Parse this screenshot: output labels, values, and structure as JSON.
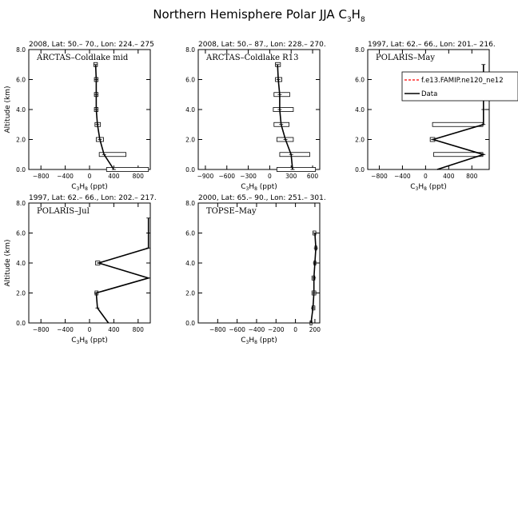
{
  "title": {
    "main": "Northern Hemisphere Polar JJA C",
    "sub1": "3",
    "mid": "H",
    "sub2": "8"
  },
  "common": {
    "ylabel": "Altitude (km)",
    "xlabel_main": "C",
    "xlabel_sub1": "3",
    "xlabel_mid": "H",
    "xlabel_sub2": "8",
    "xlabel_tail": " (ppt)"
  },
  "legend": {
    "model": "f.e13.FAMIP.ne120_ne12",
    "obs": "Data"
  },
  "colors": {
    "model": "#ff0000",
    "obs": "#000000"
  },
  "chart_data": [
    {
      "type": "line",
      "header": "2008, Lat:  50.– 70., Lon: 224.– 275",
      "campaign": "ARCTAS–Coldlake mid",
      "xlim": [
        -1000,
        1000
      ],
      "ylim": [
        0,
        8
      ],
      "xticks": [
        -800,
        -400,
        0,
        400,
        800
      ],
      "xticklabels": [
        "−800",
        "−400",
        "0",
        "400",
        "800"
      ],
      "yticks": [
        0,
        2,
        4,
        6,
        8
      ],
      "yticklabels": [
        "0.0",
        "2.0",
        "4.0",
        "6.0",
        "8.0"
      ],
      "series": [
        {
          "altitude": [
            0,
            1,
            2,
            3,
            4,
            5,
            6,
            7
          ],
          "c3h8": [
            400,
            240,
            170,
            130,
            110,
            110,
            110,
            100
          ]
        }
      ],
      "boxes": [
        {
          "alt": 0,
          "lo": 280,
          "hi": 970
        },
        {
          "alt": 1,
          "lo": 160,
          "hi": 600
        },
        {
          "alt": 2,
          "lo": 110,
          "hi": 230
        },
        {
          "alt": 3,
          "lo": 90,
          "hi": 180
        },
        {
          "alt": 4,
          "lo": 80,
          "hi": 140
        },
        {
          "alt": 5,
          "lo": 80,
          "hi": 140
        },
        {
          "alt": 6,
          "lo": 80,
          "hi": 140
        },
        {
          "alt": 7,
          "lo": 70,
          "hi": 130
        }
      ],
      "legend": false
    },
    {
      "type": "line",
      "header": "2008, Lat:  50.– 87., Lon: 228.– 270.",
      "campaign": "ARCTAS–Coldlake R13",
      "xlim": [
        -1000,
        700
      ],
      "ylim": [
        0,
        8
      ],
      "xticks": [
        -900,
        -600,
        -300,
        0,
        300,
        600
      ],
      "xticklabels": [
        "−900",
        "−600",
        "−300",
        "0",
        "300",
        "600"
      ],
      "yticks": [
        0,
        2,
        4,
        6,
        8
      ],
      "yticklabels": [
        "0.0",
        "2.0",
        "4.0",
        "6.0",
        "8.0"
      ],
      "series": [
        {
          "altitude": [
            0,
            1,
            2,
            3,
            4,
            5,
            6,
            7
          ],
          "c3h8": [
            320,
            300,
            220,
            160,
            140,
            140,
            120,
            110
          ]
        }
      ],
      "boxes": [
        {
          "alt": 0,
          "lo": 100,
          "hi": 640
        },
        {
          "alt": 1,
          "lo": 140,
          "hi": 560
        },
        {
          "alt": 2,
          "lo": 100,
          "hi": 330
        },
        {
          "alt": 3,
          "lo": 60,
          "hi": 270
        },
        {
          "alt": 4,
          "lo": 50,
          "hi": 330
        },
        {
          "alt": 5,
          "lo": 60,
          "hi": 280
        },
        {
          "alt": 6,
          "lo": 80,
          "hi": 170
        },
        {
          "alt": 7,
          "lo": 80,
          "hi": 150
        }
      ],
      "legend": false
    },
    {
      "type": "line",
      "header": "1997, Lat: 62.– 66., Lon: 201.– 216.",
      "campaign": "POLARIS–May",
      "xlim": [
        -1000,
        1100
      ],
      "ylim": [
        0,
        8
      ],
      "xticks": [
        -800,
        -400,
        0,
        400,
        800
      ],
      "xticklabels": [
        "−800",
        "−400",
        "0",
        "400",
        "800"
      ],
      "yticks": [
        0,
        2,
        4,
        6,
        8
      ],
      "yticklabels": [
        "0.0",
        "2.0",
        "4.0",
        "6.0",
        "8.0"
      ],
      "series": [
        {
          "altitude": [
            0,
            1,
            2,
            3,
            4,
            5,
            6,
            7
          ],
          "c3h8": [
            200,
            1000,
            130,
            1000,
            1000,
            1000,
            1000,
            1000
          ]
        }
      ],
      "boxes": [
        {
          "alt": 1,
          "lo": 140,
          "hi": 990
        },
        {
          "alt": 2,
          "lo": 80,
          "hi": 160
        },
        {
          "alt": 3,
          "lo": 120,
          "hi": 990
        }
      ],
      "legend": true
    },
    {
      "type": "line",
      "header": "1997, Lat: 62.– 66., Lon: 202.– 217.",
      "campaign": "POLARIS–Jul",
      "xlim": [
        -1000,
        1000
      ],
      "ylim": [
        0,
        8
      ],
      "xticks": [
        -800,
        -400,
        0,
        400,
        800
      ],
      "xticklabels": [
        "−800",
        "−400",
        "0",
        "400",
        "800"
      ],
      "yticks": [
        0,
        2,
        4,
        6,
        8
      ],
      "yticklabels": [
        "0.0",
        "2.0",
        "4.0",
        "6.0",
        "8.0"
      ],
      "series": [
        {
          "altitude": [
            0,
            1,
            2,
            3,
            4,
            5,
            6,
            7
          ],
          "c3h8": [
            310,
            130,
            110,
            970,
            150,
            970,
            970,
            970
          ]
        }
      ],
      "boxes": [
        {
          "alt": 2,
          "lo": 90,
          "hi": 140
        },
        {
          "alt": 4,
          "lo": 100,
          "hi": 170
        }
      ],
      "legend": false
    },
    {
      "type": "line",
      "header": "2000, Lat: 65.– 90., Lon: 251.– 301.",
      "campaign": "TOPSE–May",
      "xlim": [
        -1000,
        250
      ],
      "ylim": [
        0,
        8
      ],
      "xticks": [
        -800,
        -600,
        -400,
        -200,
        0,
        200
      ],
      "xticklabels": [
        "−800",
        "−600",
        "−400",
        "−200",
        "0",
        "200"
      ],
      "yticks": [
        0,
        2,
        4,
        6,
        8
      ],
      "yticklabels": [
        "0.0",
        "2.0",
        "4.0",
        "6.0",
        "8.0"
      ],
      "series": [
        {
          "altitude": [
            0,
            1,
            2,
            3,
            4,
            5,
            6
          ],
          "c3h8": [
            160,
            180,
            190,
            190,
            200,
            210,
            200
          ]
        }
      ],
      "boxes": [
        {
          "alt": 0,
          "lo": 150,
          "hi": 170
        },
        {
          "alt": 1,
          "lo": 170,
          "hi": 200
        },
        {
          "alt": 2,
          "lo": 170,
          "hi": 210
        },
        {
          "alt": 3,
          "lo": 170,
          "hi": 200
        },
        {
          "alt": 4,
          "lo": 190,
          "hi": 210
        },
        {
          "alt": 5,
          "lo": 200,
          "hi": 220
        },
        {
          "alt": 6,
          "lo": 180,
          "hi": 210
        }
      ],
      "legend": false
    }
  ]
}
